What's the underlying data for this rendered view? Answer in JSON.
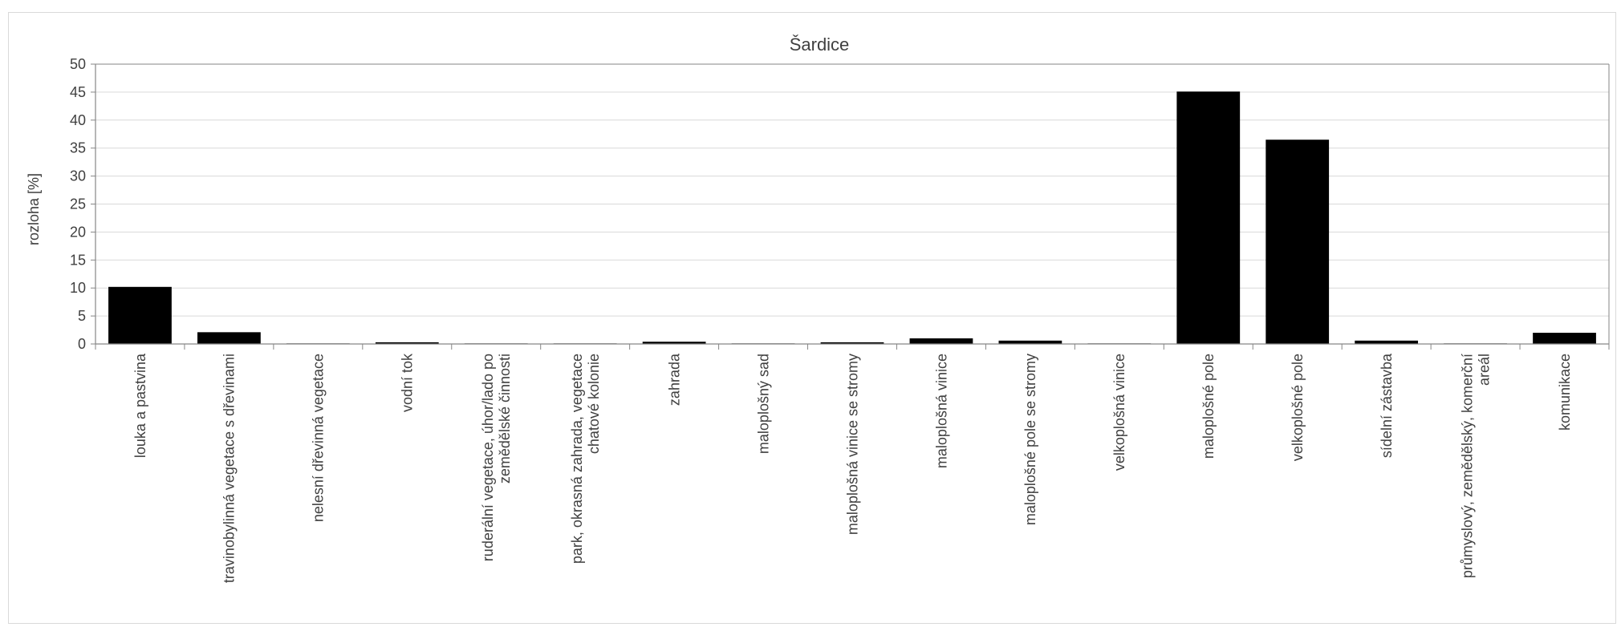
{
  "chart_data": {
    "type": "bar",
    "title": "Šardice",
    "ylabel": "rozloha [%]",
    "xlabel": "",
    "ylim": [
      0,
      50
    ],
    "yticks": [
      0,
      5,
      10,
      15,
      20,
      25,
      30,
      35,
      40,
      45,
      50
    ],
    "grid": true,
    "legend": "none",
    "bar_color": "#000000",
    "categories": [
      [
        "louka a pastvina"
      ],
      [
        "travinobylinná vegetace s dřevinami"
      ],
      [
        "nelesní dřevinná vegetace"
      ],
      [
        "vodní tok"
      ],
      [
        "ruderální vegetace, úhor/lado po",
        "zemědělské činnosti"
      ],
      [
        "park, okrasná zahrada, vegetace",
        "chatové kolonie"
      ],
      [
        "zahrada"
      ],
      [
        "maloplošný sad"
      ],
      [
        "maloplošná vinice se stromy"
      ],
      [
        "maloplošná vinice"
      ],
      [
        "maloplošné pole se stromy"
      ],
      [
        "velkoplošná vinice"
      ],
      [
        "maloplošné pole"
      ],
      [
        "velkoplošné pole"
      ],
      [
        "sídelní zástavba"
      ],
      [
        "průmyslový, zemědělský, komerční",
        "areál"
      ],
      [
        "komunikace"
      ]
    ],
    "values": [
      10.2,
      2.1,
      0.1,
      0.3,
      0.1,
      0.1,
      0.4,
      0.1,
      0.3,
      1.0,
      0.6,
      0.1,
      45.1,
      36.5,
      0.6,
      0.1,
      2.0
    ]
  }
}
